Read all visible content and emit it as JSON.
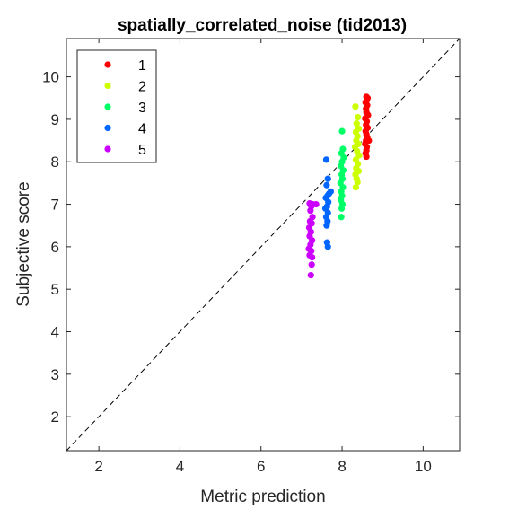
{
  "chart_data": {
    "type": "scatter",
    "title": "spatially_correlated_noise (tid2013)",
    "xlabel": "Metric prediction",
    "ylabel": "Subjective score",
    "xlim": [
      1.2,
      10.9
    ],
    "ylim": [
      1.2,
      10.9
    ],
    "xticks": [
      "2",
      "4",
      "6",
      "8",
      "10"
    ],
    "yticks": [
      "2",
      "3",
      "4",
      "5",
      "6",
      "7",
      "8",
      "9",
      "10"
    ],
    "grid": false,
    "box": true,
    "reference_line": {
      "style": "dashed",
      "color": "#000000",
      "from": [
        1.2,
        1.2
      ],
      "to": [
        10.9,
        10.9
      ]
    },
    "legend": {
      "position": "top-left",
      "entries": [
        "1",
        "2",
        "3",
        "4",
        "5"
      ]
    },
    "series": [
      {
        "name": "1",
        "color": "#ff0000",
        "points": [
          [
            8.6,
            9.53
          ],
          [
            8.63,
            9.5
          ],
          [
            8.61,
            9.45
          ],
          [
            8.58,
            9.4
          ],
          [
            8.62,
            9.33
          ],
          [
            8.59,
            9.25
          ],
          [
            8.6,
            9.17
          ],
          [
            8.64,
            9.1
          ],
          [
            8.57,
            9.02
          ],
          [
            8.61,
            8.95
          ],
          [
            8.59,
            8.87
          ],
          [
            8.63,
            8.8
          ],
          [
            8.58,
            8.72
          ],
          [
            8.6,
            8.65
          ],
          [
            8.62,
            8.58
          ],
          [
            8.59,
            8.5
          ],
          [
            8.66,
            8.5
          ],
          [
            8.57,
            8.42
          ],
          [
            8.61,
            8.35
          ],
          [
            8.6,
            8.27
          ],
          [
            8.58,
            8.2
          ],
          [
            8.6,
            8.12
          ]
        ]
      },
      {
        "name": "2",
        "color": "#ccff00",
        "points": [
          [
            8.33,
            9.3
          ],
          [
            8.39,
            9.05
          ],
          [
            8.36,
            8.9
          ],
          [
            8.41,
            8.78
          ],
          [
            8.34,
            8.7
          ],
          [
            8.38,
            8.6
          ],
          [
            8.35,
            8.5
          ],
          [
            8.4,
            8.42
          ],
          [
            8.32,
            8.35
          ],
          [
            8.37,
            8.25
          ],
          [
            8.42,
            8.15
          ],
          [
            8.34,
            8.05
          ],
          [
            8.39,
            7.95
          ],
          [
            8.35,
            7.85
          ],
          [
            8.41,
            7.78
          ],
          [
            8.33,
            7.7
          ],
          [
            8.36,
            7.6
          ],
          [
            8.38,
            7.52
          ],
          [
            8.34,
            7.4
          ]
        ]
      },
      {
        "name": "3",
        "color": "#00ff66",
        "points": [
          [
            8.0,
            8.72
          ],
          [
            8.02,
            8.3
          ],
          [
            7.98,
            8.2
          ],
          [
            8.04,
            8.1
          ],
          [
            8.0,
            8.0
          ],
          [
            7.97,
            7.9
          ],
          [
            8.03,
            7.8
          ],
          [
            7.99,
            7.7
          ],
          [
            8.01,
            7.6
          ],
          [
            7.96,
            7.5
          ],
          [
            8.02,
            7.4
          ],
          [
            7.98,
            7.3
          ],
          [
            8.0,
            7.2
          ],
          [
            7.97,
            7.1
          ],
          [
            8.01,
            7.0
          ],
          [
            7.99,
            6.9
          ],
          [
            7.98,
            6.7
          ]
        ]
      },
      {
        "name": "4",
        "color": "#0066ff",
        "points": [
          [
            7.61,
            8.05
          ],
          [
            7.65,
            7.6
          ],
          [
            7.62,
            7.45
          ],
          [
            7.72,
            7.3
          ],
          [
            7.68,
            7.25
          ],
          [
            7.64,
            7.2
          ],
          [
            7.6,
            7.15
          ],
          [
            7.66,
            7.05
          ],
          [
            7.63,
            6.95
          ],
          [
            7.59,
            6.9
          ],
          [
            7.65,
            6.8
          ],
          [
            7.61,
            6.7
          ],
          [
            7.64,
            6.6
          ],
          [
            7.62,
            6.5
          ],
          [
            7.63,
            6.1
          ],
          [
            7.65,
            6.0
          ]
        ]
      },
      {
        "name": "5",
        "color": "#cc00ff",
        "points": [
          [
            7.2,
            7.02
          ],
          [
            7.28,
            7.0
          ],
          [
            7.36,
            7.0
          ],
          [
            7.24,
            6.95
          ],
          [
            7.22,
            6.85
          ],
          [
            7.27,
            6.7
          ],
          [
            7.21,
            6.6
          ],
          [
            7.25,
            6.55
          ],
          [
            7.19,
            6.45
          ],
          [
            7.23,
            6.35
          ],
          [
            7.2,
            6.25
          ],
          [
            7.26,
            6.15
          ],
          [
            7.22,
            6.05
          ],
          [
            7.18,
            5.95
          ],
          [
            7.24,
            5.9
          ],
          [
            7.2,
            5.8
          ],
          [
            7.26,
            5.75
          ],
          [
            7.25,
            5.58
          ],
          [
            7.23,
            5.33
          ]
        ]
      }
    ]
  }
}
